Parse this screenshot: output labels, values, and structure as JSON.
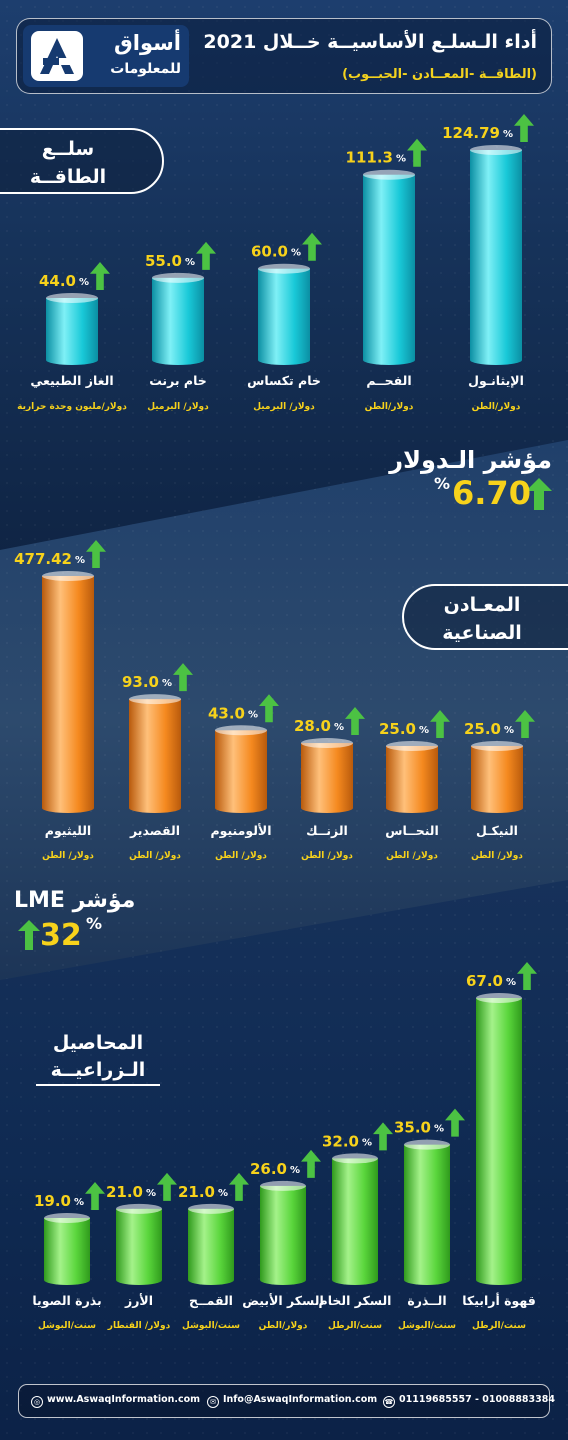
{
  "header": {
    "logo_name": "أسواق",
    "logo_sub": "للمعلومات",
    "title": "أداء الـسلـع الأساسيــة خــلال 2021",
    "subtitle": "(الطاقــة -المعــادن -الحبــوب)"
  },
  "energy": {
    "label_line1": "سلــع",
    "label_line2": "الطاقــة",
    "index_label": "مؤشر الـدولار",
    "index_value": "6.70",
    "index_unit": "%"
  },
  "metals": {
    "label_line1": "المعـادن",
    "label_line2": "الصناعية",
    "index_label": "مؤشر LME",
    "index_value": "32",
    "index_unit": "%"
  },
  "agri": {
    "label_line1": "المحاصيل",
    "label_line2": "الـزراعيــة"
  },
  "colors": {
    "energy_bar": "#19c9d8",
    "metals_bar": "#f5891f",
    "agri_bar": "#5ad63c",
    "value_text": "#f7d21b",
    "arrow": "#4cc243",
    "unit_text": "#f7d21b"
  },
  "chart_data": [
    {
      "type": "bar",
      "title": "",
      "categories": [
        "الإيثانـول",
        "الفحــم",
        "خام تكساس",
        "خام برنت",
        "الغاز الطبيعي"
      ],
      "units": [
        "دولار/الطن",
        "دولار/الطن",
        "دولار/ البرميل",
        "دولار/ البرميل",
        "دولار/مليون وحدة حرارية"
      ],
      "values": [
        124.79,
        111.3,
        60.0,
        55.0,
        44.0
      ],
      "labels": [
        "124.79",
        "111.3",
        "60.0",
        "55.0",
        "44.0"
      ],
      "legend": "none",
      "grid": false
    },
    {
      "type": "bar",
      "title": "",
      "categories": [
        "الليثيوم",
        "القصدير",
        "الألومنيوم",
        "الزنــك",
        "النحــاس",
        "النيكـل"
      ],
      "units": [
        "دولار/ الطن",
        "دولار/ الطن",
        "دولار/ الطن",
        "دولار/ الطن",
        "دولار/ الطن",
        "دولار/ الطن"
      ],
      "values": [
        477.42,
        93.0,
        43.0,
        28.0,
        25.0,
        25.0
      ],
      "labels": [
        "477.42",
        "93.0",
        "43.0",
        "28.0",
        "25.0",
        "25.0"
      ],
      "legend": "none",
      "grid": false
    },
    {
      "type": "bar",
      "title": "",
      "categories": [
        "قهوة أرابيكا",
        "الــذرة",
        "السكر الخام",
        "السكر الأبيض",
        "القمــح",
        "الأرز",
        "بذرة الصويا"
      ],
      "units": [
        "سنت/الرطل",
        "سنت/البوشل",
        "سنت/الرطل",
        "دولار/الطن",
        "سنت/البوشل",
        "دولار/ القنطار",
        "سنت/البوشل"
      ],
      "values": [
        67.0,
        35.0,
        32.0,
        26.0,
        21.0,
        21.0,
        19.0
      ],
      "labels": [
        "67.0",
        "35.0",
        "32.0",
        "26.0",
        "21.0",
        "21.0",
        "19.0"
      ],
      "legend": "none",
      "grid": false
    }
  ],
  "footer": {
    "website": "www.AswaqInformation.com",
    "email": "Info@AswaqInformation.com",
    "phone": "01119685557 - 01008883384"
  }
}
